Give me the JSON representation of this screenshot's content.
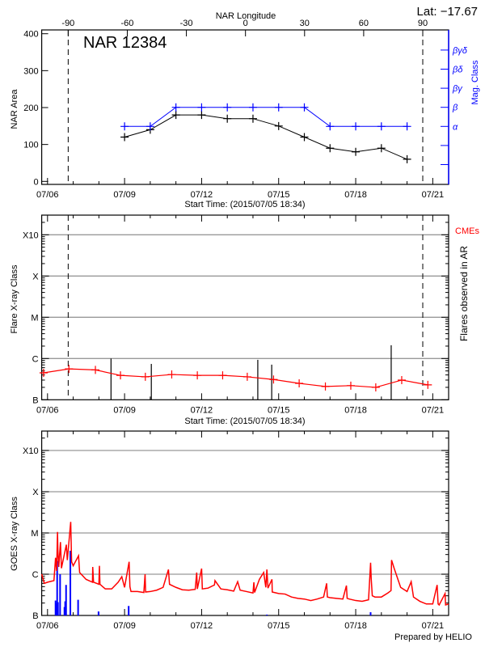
{
  "header": {
    "lat_label": "Lat: −17.67"
  },
  "footer": {
    "credit": "Prepared by HELIO"
  },
  "colors": {
    "area": "#000000",
    "mag_class": "#0000ff",
    "flare_background": "#ff0000",
    "goes_flux": "#ff0000",
    "goes_events": "#0000ff",
    "grid": "#999999"
  },
  "chart_data": [
    {
      "type": "line",
      "title": "NAR 12384",
      "xlabel": "Start Time: (2015/07/05 18:34)",
      "ylabel": "NAR Area",
      "y2label": "Mag. Class",
      "top_axis_label": "NAR Longitude",
      "top_ticks": [
        "-90",
        "-60",
        "-30",
        "0",
        "30",
        "60",
        "90"
      ],
      "limb_times": [
        "2015-07-06 19:19",
        "2015-07-20 14:40"
      ],
      "xlim": [
        "2015-07-05 18:34",
        "2015-07-21 14:50"
      ],
      "x_ticks": [
        "07/06",
        "07/09",
        "07/12",
        "07/15",
        "07/18",
        "07/21"
      ],
      "ylim": [
        0,
        400
      ],
      "y_ticks": [
        "0",
        "100",
        "200",
        "300",
        "400"
      ],
      "mag_classes": [
        "α",
        "β",
        "βγ",
        "βδ",
        "βγδ"
      ],
      "area": {
        "x": [
          "2015-07-09 00:00",
          "2015-07-10 00:00",
          "2015-07-11 00:00",
          "2015-07-12 00:00",
          "2015-07-13 00:00",
          "2015-07-14 00:00",
          "2015-07-15 00:00",
          "2015-07-16 00:00",
          "2015-07-17 00:00",
          "2015-07-18 00:00",
          "2015-07-19 00:00",
          "2015-07-20 00:00"
        ],
        "values": [
          120,
          140,
          180,
          180,
          170,
          170,
          150,
          120,
          90,
          80,
          90,
          60
        ]
      },
      "mag_class": {
        "x": [
          "2015-07-09 00:00",
          "2015-07-10 00:00",
          "2015-07-11 00:00",
          "2015-07-12 00:00",
          "2015-07-13 00:00",
          "2015-07-14 00:00",
          "2015-07-15 00:00",
          "2015-07-16 00:00",
          "2015-07-17 00:00",
          "2015-07-18 00:00",
          "2015-07-19 00:00",
          "2015-07-20 00:00"
        ],
        "values": [
          "α",
          "α",
          "β",
          "β",
          "β",
          "β",
          "β",
          "β",
          "α",
          "α",
          "α",
          "α"
        ]
      }
    },
    {
      "type": "line",
      "xlabel": "Start Time: (2015/07/05 18:34)",
      "ylabel": "Flare X-ray Class",
      "y2label": "Flares observed in AR",
      "cme_label": "CMEs",
      "y_scale": "log",
      "ylim": [
        1e-07,
        0.003
      ],
      "y_ticks": [
        {
          "label": "B",
          "flux": 1e-07
        },
        {
          "label": "C",
          "flux": 1e-06
        },
        {
          "label": "M",
          "flux": 1e-05
        },
        {
          "label": "X",
          "flux": 0.0001
        },
        {
          "label": "X10",
          "flux": 0.001
        }
      ],
      "grid": true,
      "limb_times": [
        "2015-07-06 19:19",
        "2015-07-20 14:40"
      ],
      "x_ticks": [
        "07/06",
        "07/09",
        "07/12",
        "07/15",
        "07/18",
        "07/21"
      ],
      "flare_events": [
        [
          "2015-07-08 11:20",
          1e-06
        ],
        [
          "2015-07-10 01:00",
          7.4e-07
        ],
        [
          "2015-07-14 04:30",
          9.3e-07
        ],
        [
          "2015-07-14 17:30",
          7.1e-07
        ],
        [
          "2015-07-19 09:10",
          2.1e-06
        ]
      ],
      "background": [
        [
          "2015-07-05 20:20",
          4.5e-07
        ],
        [
          "2015-07-06 20:00",
          5.6e-07
        ],
        [
          "2015-07-07 20:45",
          5.3e-07
        ],
        [
          "2015-07-08 20:10",
          3.9e-07
        ],
        [
          "2015-07-09 19:25",
          3.6e-07
        ],
        [
          "2015-07-10 20:05",
          4.1e-07
        ],
        [
          "2015-07-11 20:00",
          3.9e-07
        ],
        [
          "2015-07-12 19:40",
          3.9e-07
        ],
        [
          "2015-07-13 18:40",
          3.6e-07
        ],
        [
          "2015-07-14 19:15",
          3.1e-07
        ],
        [
          "2015-07-15 19:10",
          2.5e-07
        ],
        [
          "2015-07-16 19:40",
          2.1e-07
        ],
        [
          "2015-07-17 19:25",
          2.2e-07
        ],
        [
          "2015-07-18 18:45",
          2e-07
        ],
        [
          "2015-07-19 19:00",
          3e-07
        ],
        [
          "2015-07-20 19:25",
          2.3e-07
        ]
      ]
    },
    {
      "type": "line",
      "ylabel": "GOES X-ray Class",
      "y_scale": "log",
      "ylim": [
        1e-07,
        0.003
      ],
      "y_ticks": [
        {
          "label": "B",
          "flux": 1e-07
        },
        {
          "label": "C",
          "flux": 1e-06
        },
        {
          "label": "M",
          "flux": 1e-05
        },
        {
          "label": "X",
          "flux": 0.0001
        },
        {
          "label": "X10",
          "flux": 0.001
        }
      ],
      "grid": true,
      "x_ticks": [
        "07/06",
        "07/09",
        "07/12",
        "07/15",
        "07/18",
        "07/21"
      ],
      "goes_flux": [
        [
          "2015-07-05 18:34",
          1e-06
        ],
        [
          "2015-07-05 21:00",
          6e-07
        ],
        [
          "2015-07-06 00:00",
          6.4e-07
        ],
        [
          "2015-07-06 06:00",
          7e-07
        ],
        [
          "2015-07-06 07:30",
          2.5e-06
        ],
        [
          "2015-07-06 08:30",
          1.2e-06
        ],
        [
          "2015-07-06 09:20",
          1.06e-05
        ],
        [
          "2015-07-06 09:40",
          3.9e-06
        ],
        [
          "2015-07-06 10:30",
          1.5e-06
        ],
        [
          "2015-07-06 12:05",
          6e-06
        ],
        [
          "2015-07-06 13:00",
          1.4e-06
        ],
        [
          "2015-07-06 17:35",
          5.2e-06
        ],
        [
          "2015-07-06 18:30",
          2.2e-06
        ],
        [
          "2015-07-06 21:40",
          1.86e-05
        ],
        [
          "2015-07-06 22:30",
          2e-06
        ],
        [
          "2015-07-07 00:00",
          1.6e-06
        ],
        [
          "2015-07-07 05:00",
          2.8e-06
        ],
        [
          "2015-07-07 06:00",
          1.1e-06
        ],
        [
          "2015-07-07 12:00",
          7.5e-07
        ],
        [
          "2015-07-07 18:00",
          6.4e-07
        ],
        [
          "2015-07-07 18:15",
          1.5e-06
        ],
        [
          "2015-07-07 19:00",
          6.4e-07
        ],
        [
          "2015-07-08 00:00",
          5.7e-07
        ],
        [
          "2015-07-08 00:30",
          1.6e-06
        ],
        [
          "2015-07-08 01:00",
          5.7e-07
        ],
        [
          "2015-07-08 06:00",
          4.4e-07
        ],
        [
          "2015-07-08 12:00",
          4.4e-07
        ],
        [
          "2015-07-08 18:00",
          6.4e-07
        ],
        [
          "2015-07-08 21:25",
          8.7e-07
        ],
        [
          "2015-07-09 00:00",
          4.8e-07
        ],
        [
          "2015-07-09 04:15",
          2e-06
        ],
        [
          "2015-07-09 05:00",
          5e-07
        ],
        [
          "2015-07-09 06:00",
          3.8e-07
        ],
        [
          "2015-07-09 12:00",
          3.8e-07
        ],
        [
          "2015-07-09 18:00",
          3.6e-07
        ],
        [
          "2015-07-09 19:10",
          1e-06
        ],
        [
          "2015-07-09 19:40",
          3.7e-07
        ],
        [
          "2015-07-10 00:00",
          3.8e-07
        ],
        [
          "2015-07-10 06:00",
          4.1e-07
        ],
        [
          "2015-07-10 12:00",
          4.8e-07
        ],
        [
          "2015-07-10 17:00",
          1.3e-06
        ],
        [
          "2015-07-10 18:00",
          5.7e-07
        ],
        [
          "2015-07-11 00:00",
          4.8e-07
        ],
        [
          "2015-07-11 06:00",
          4.2e-07
        ],
        [
          "2015-07-11 12:00",
          4.1e-07
        ],
        [
          "2015-07-11 18:00",
          4.3e-07
        ],
        [
          "2015-07-11 19:25",
          1.1e-06
        ],
        [
          "2015-07-11 20:00",
          4.4e-07
        ],
        [
          "2015-07-12 00:00",
          1.37e-06
        ],
        [
          "2015-07-12 00:40",
          4.4e-07
        ],
        [
          "2015-07-12 06:00",
          4.6e-07
        ],
        [
          "2015-07-12 12:00",
          5.5e-07
        ],
        [
          "2015-07-12 12:30",
          7e-07
        ],
        [
          "2015-07-12 18:00",
          4.4e-07
        ],
        [
          "2015-07-13 00:00",
          4.2e-07
        ],
        [
          "2015-07-13 06:00",
          3.9e-07
        ],
        [
          "2015-07-13 09:40",
          6.6e-07
        ],
        [
          "2015-07-13 12:00",
          4.1e-07
        ],
        [
          "2015-07-13 18:00",
          3.8e-07
        ],
        [
          "2015-07-14 00:00",
          3.5e-07
        ],
        [
          "2015-07-14 00:50",
          6.4e-07
        ],
        [
          "2015-07-14 01:30",
          3.6e-07
        ],
        [
          "2015-07-14 06:00",
          7.5e-07
        ],
        [
          "2015-07-14 10:00",
          1.1e-06
        ],
        [
          "2015-07-14 12:00",
          4.8e-07
        ],
        [
          "2015-07-14 13:00",
          1.3e-06
        ],
        [
          "2015-07-14 14:00",
          4.6e-07
        ],
        [
          "2015-07-14 17:45",
          7.5e-07
        ],
        [
          "2015-07-14 18:00",
          3.7e-07
        ],
        [
          "2015-07-15 00:00",
          3.4e-07
        ],
        [
          "2015-07-15 06:00",
          3.3e-07
        ],
        [
          "2015-07-15 12:00",
          2.8e-07
        ],
        [
          "2015-07-15 18:00",
          2.6e-07
        ],
        [
          "2015-07-16 00:00",
          2.5e-07
        ],
        [
          "2015-07-16 06:00",
          2.3e-07
        ],
        [
          "2015-07-16 12:00",
          2.5e-07
        ],
        [
          "2015-07-16 18:00",
          2.8e-07
        ],
        [
          "2015-07-16 20:50",
          6e-07
        ],
        [
          "2015-07-16 21:30",
          2.8e-07
        ],
        [
          "2015-07-17 00:00",
          2.7e-07
        ],
        [
          "2015-07-17 06:00",
          2.6e-07
        ],
        [
          "2015-07-17 12:00",
          2.5e-07
        ],
        [
          "2015-07-17 15:20",
          5.3e-07
        ],
        [
          "2015-07-17 16:00",
          2.6e-07
        ],
        [
          "2015-07-17 18:00",
          2.5e-07
        ],
        [
          "2015-07-18 00:00",
          2.3e-07
        ],
        [
          "2015-07-18 06:00",
          2.2e-07
        ],
        [
          "2015-07-18 12:00",
          2.4e-07
        ],
        [
          "2015-07-18 13:55",
          1.9e-06
        ],
        [
          "2015-07-18 14:30",
          7.7e-07
        ],
        [
          "2015-07-18 15:30",
          3e-07
        ],
        [
          "2015-07-18 18:00",
          2.8e-07
        ],
        [
          "2015-07-19 00:00",
          2.8e-07
        ],
        [
          "2015-07-19 06:00",
          3.5e-07
        ],
        [
          "2015-07-19 09:00",
          4e-07
        ],
        [
          "2015-07-19 09:30",
          2.2e-06
        ],
        [
          "2015-07-19 12:00",
          1.37e-06
        ],
        [
          "2015-07-19 18:00",
          4.8e-07
        ],
        [
          "2015-07-20 00:00",
          3.8e-07
        ],
        [
          "2015-07-20 03:50",
          6.6e-07
        ],
        [
          "2015-07-20 06:00",
          2.8e-07
        ],
        [
          "2015-07-20 12:00",
          2.2e-07
        ],
        [
          "2015-07-20 18:00",
          1.9e-07
        ],
        [
          "2015-07-21 00:00",
          1.9e-07
        ],
        [
          "2015-07-21 04:05",
          5.5e-07
        ],
        [
          "2015-07-21 05:00",
          1.9e-07
        ],
        [
          "2015-07-21 06:00",
          1.8e-07
        ],
        [
          "2015-07-21 11:30",
          3.4e-07
        ],
        [
          "2015-07-21 12:00",
          1.8e-07
        ],
        [
          "2015-07-21 14:50",
          1.9e-07
        ]
      ],
      "goes_events": [
        [
          "2015-07-06 07:30",
          2.3e-07
        ],
        [
          "2015-07-06 08:15",
          2e-07
        ],
        [
          "2015-07-06 09:00",
          2.1e-06
        ],
        [
          "2015-07-06 09:45",
          2.1e-07
        ],
        [
          "2015-07-06 11:45",
          1e-06
        ],
        [
          "2015-07-06 15:50",
          1.6e-07
        ],
        [
          "2015-07-06 16:30",
          2.2e-07
        ],
        [
          "2015-07-06 17:20",
          5.5e-07
        ],
        [
          "2015-07-06 21:20",
          3.7e-06
        ],
        [
          "2015-07-07 04:35",
          2.4e-07
        ],
        [
          "2015-07-07 23:40",
          1.25e-07
        ],
        [
          "2015-07-09 03:50",
          1.7e-07
        ],
        [
          "2015-07-14 13:00",
          1.05e-07
        ],
        [
          "2015-07-18 13:55",
          1.2e-07
        ]
      ]
    }
  ]
}
